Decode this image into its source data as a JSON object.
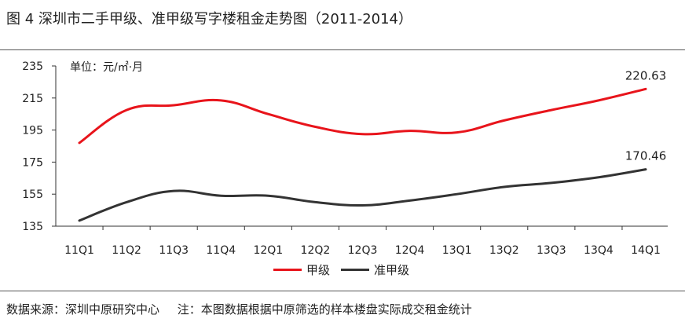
{
  "title": "图 4  深圳市二手甲级、准甲级写字楼租金走势图（2011-2014）",
  "source": "数据来源：深圳中原研究中心",
  "note": "注：本图数据根据中原筛选的样本楼盘实际成交租金统计",
  "colors": {
    "series1": "#e8141b",
    "series2": "#333333",
    "axis": "#333333"
  },
  "chart_data": {
    "type": "line",
    "ylabel": "单位：元/㎡·月",
    "ylim": [
      135,
      235
    ],
    "yticks": [
      135,
      155,
      175,
      195,
      215,
      235
    ],
    "categories": [
      "11Q1",
      "11Q2",
      "11Q3",
      "11Q4",
      "12Q1",
      "12Q2",
      "12Q3",
      "12Q4",
      "13Q1",
      "13Q2",
      "13Q3",
      "13Q4",
      "14Q1"
    ],
    "series": [
      {
        "name": "甲级",
        "values": [
          187,
          207.5,
          210.5,
          213.5,
          205,
          197,
          192.5,
          194.5,
          193.5,
          201,
          207.5,
          213.5,
          220.63
        ],
        "end_label": "220.63"
      },
      {
        "name": "准甲级",
        "values": [
          138.5,
          150,
          157,
          154,
          154,
          150,
          148,
          151,
          155,
          159.5,
          162,
          165.5,
          170.46
        ],
        "end_label": "170.46"
      }
    ]
  }
}
